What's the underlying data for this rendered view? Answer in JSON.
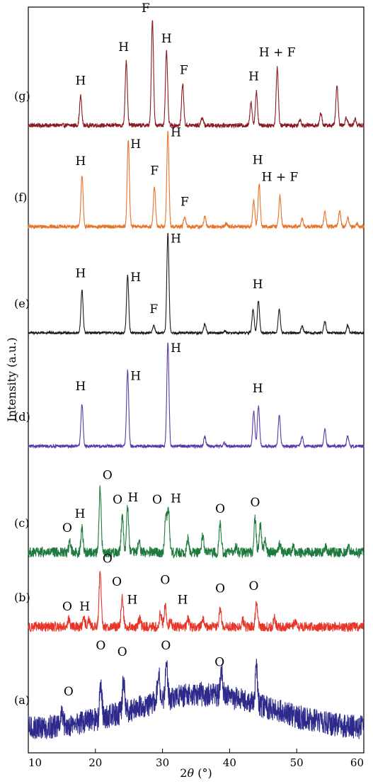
{
  "chart_data": {
    "type": "line",
    "xlabel_prefix": "2",
    "xlabel_theta": "θ",
    "xlabel_suffix": " (°)",
    "ylabel": "Intensity (a.u.)",
    "xlim": [
      10,
      60
    ],
    "x_ticks": [
      10,
      20,
      30,
      40,
      50,
      60
    ],
    "x_tick_labels": [
      "10",
      "20",
      "30",
      "40",
      "50",
      "60"
    ],
    "series": [
      {
        "name": "(g)",
        "color": "#8b1a24",
        "baseline": 1.0,
        "noise": 0.02,
        "peaks": [
          [
            17.8,
            0.28
          ],
          [
            24.6,
            0.62
          ],
          [
            28.5,
            1.0
          ],
          [
            30.6,
            0.7
          ],
          [
            33.0,
            0.4
          ],
          [
            35.9,
            0.08
          ],
          [
            43.2,
            0.22
          ],
          [
            44.0,
            0.32
          ],
          [
            47.1,
            0.55
          ],
          [
            50.5,
            0.06
          ],
          [
            53.6,
            0.12
          ],
          [
            56.0,
            0.38
          ],
          [
            57.4,
            0.08
          ],
          [
            58.7,
            0.06
          ]
        ],
        "annotations": [
          {
            "text": "H",
            "x": 17.8,
            "y": 0.39
          },
          {
            "text": "H",
            "x": 24.2,
            "y": 0.71
          },
          {
            "text": "F",
            "x": 27.5,
            "y": 1.08
          },
          {
            "text": "H",
            "x": 30.6,
            "y": 0.79
          },
          {
            "text": "F",
            "x": 33.2,
            "y": 0.49
          },
          {
            "text": "H",
            "x": 43.6,
            "y": 0.43
          },
          {
            "text": "H + F",
            "x": 47.1,
            "y": 0.66
          }
        ]
      },
      {
        "name": "(f)",
        "color": "#e8742a",
        "baseline": 1.0,
        "noise": 0.02,
        "peaks": [
          [
            18.0,
            0.54
          ],
          [
            24.9,
            0.92
          ],
          [
            28.8,
            0.42
          ],
          [
            30.8,
            1.0
          ],
          [
            33.3,
            0.1
          ],
          [
            36.3,
            0.1
          ],
          [
            39.5,
            0.03
          ],
          [
            43.6,
            0.27
          ],
          [
            44.4,
            0.45
          ],
          [
            47.5,
            0.33
          ],
          [
            50.8,
            0.08
          ],
          [
            54.2,
            0.15
          ],
          [
            56.4,
            0.16
          ],
          [
            57.6,
            0.1
          ],
          [
            59.0,
            0.03
          ]
        ],
        "annotations": [
          {
            "text": "H",
            "x": 17.8,
            "y": 0.65
          },
          {
            "text": "H",
            "x": 26.0,
            "y": 0.83
          },
          {
            "text": "F",
            "x": 28.8,
            "y": 0.55
          },
          {
            "text": "H",
            "x": 32.0,
            "y": 0.95
          },
          {
            "text": "F",
            "x": 33.3,
            "y": 0.22
          },
          {
            "text": "H",
            "x": 44.2,
            "y": 0.66
          },
          {
            "text": "H + F",
            "x": 47.5,
            "y": 0.48
          }
        ]
      },
      {
        "name": "(e)",
        "color": "#1a1a1a",
        "baseline": 1.0,
        "noise": 0.012,
        "peaks": [
          [
            18.0,
            0.43
          ],
          [
            24.8,
            0.58
          ],
          [
            28.7,
            0.07
          ],
          [
            30.8,
            1.0
          ],
          [
            36.3,
            0.09
          ],
          [
            39.3,
            0.02
          ],
          [
            43.5,
            0.24
          ],
          [
            44.3,
            0.33
          ],
          [
            47.4,
            0.24
          ],
          [
            50.8,
            0.07
          ],
          [
            54.2,
            0.12
          ],
          [
            57.6,
            0.08
          ]
        ],
        "annotations": [
          {
            "text": "H",
            "x": 17.8,
            "y": 0.56
          },
          {
            "text": "H",
            "x": 26.0,
            "y": 0.52
          },
          {
            "text": "F",
            "x": 28.7,
            "y": 0.2
          },
          {
            "text": "H",
            "x": 32.0,
            "y": 0.91
          },
          {
            "text": "H",
            "x": 44.2,
            "y": 0.45
          }
        ]
      },
      {
        "name": "(d)",
        "color": "#5b3aa8",
        "baseline": 1.0,
        "noise": 0.015,
        "peaks": [
          [
            18.0,
            0.41
          ],
          [
            24.8,
            0.73
          ],
          [
            30.8,
            1.0
          ],
          [
            36.3,
            0.09
          ],
          [
            39.2,
            0.03
          ],
          [
            43.6,
            0.34
          ],
          [
            44.3,
            0.39
          ],
          [
            47.4,
            0.3
          ],
          [
            50.8,
            0.09
          ],
          [
            54.2,
            0.16
          ],
          [
            57.6,
            0.1
          ]
        ],
        "annotations": [
          {
            "text": "H",
            "x": 17.8,
            "y": 0.54
          },
          {
            "text": "H",
            "x": 26.0,
            "y": 0.64
          },
          {
            "text": "H",
            "x": 32.0,
            "y": 0.91
          },
          {
            "text": "H",
            "x": 44.2,
            "y": 0.52
          }
        ]
      },
      {
        "name": "(c)",
        "color": "#1e7a3c",
        "baseline": 1.0,
        "noise": 0.05,
        "peaks": [
          [
            16.2,
            0.1
          ],
          [
            18.0,
            0.23
          ],
          [
            20.7,
            0.62
          ],
          [
            24.0,
            0.37
          ],
          [
            24.8,
            0.45
          ],
          [
            26.5,
            0.1
          ],
          [
            30.5,
            0.36
          ],
          [
            30.9,
            0.41
          ],
          [
            33.8,
            0.13
          ],
          [
            36.0,
            0.16
          ],
          [
            38.6,
            0.28
          ],
          [
            41.0,
            0.06
          ],
          [
            43.8,
            0.33
          ],
          [
            44.6,
            0.27
          ],
          [
            45.3,
            0.12
          ],
          [
            47.5,
            0.09
          ],
          [
            49.5,
            0.05
          ],
          [
            54.3,
            0.05
          ],
          [
            57.7,
            0.04
          ]
        ],
        "annotations": [
          {
            "text": "O",
            "x": 15.8,
            "y": 0.2
          },
          {
            "text": "H",
            "x": 17.7,
            "y": 0.34
          },
          {
            "text": "O",
            "x": 21.8,
            "y": 0.72
          },
          {
            "text": "O",
            "x": 23.3,
            "y": 0.48
          },
          {
            "text": "H",
            "x": 25.6,
            "y": 0.5
          },
          {
            "text": "O",
            "x": 29.2,
            "y": 0.48
          },
          {
            "text": "H",
            "x": 32.0,
            "y": 0.49
          },
          {
            "text": "O",
            "x": 38.6,
            "y": 0.39
          },
          {
            "text": "O",
            "x": 43.8,
            "y": 0.45
          }
        ]
      },
      {
        "name": "(b)",
        "color": "#e8352a",
        "baseline": 1.0,
        "noise": 0.06,
        "peaks": [
          [
            16.0,
            0.09
          ],
          [
            18.3,
            0.09
          ],
          [
            19.0,
            0.07
          ],
          [
            20.7,
            0.65
          ],
          [
            24.0,
            0.37
          ],
          [
            26.6,
            0.09
          ],
          [
            29.7,
            0.16
          ],
          [
            30.4,
            0.26
          ],
          [
            31.2,
            0.09
          ],
          [
            33.8,
            0.09
          ],
          [
            36.0,
            0.09
          ],
          [
            38.6,
            0.22
          ],
          [
            42.0,
            0.08
          ],
          [
            44.0,
            0.28
          ],
          [
            46.7,
            0.1
          ],
          [
            49.7,
            0.05
          ]
        ],
        "annotations": [
          {
            "text": "O",
            "x": 15.8,
            "y": 0.2
          },
          {
            "text": "H",
            "x": 18.4,
            "y": 0.2
          },
          {
            "text": "O",
            "x": 21.8,
            "y": 0.78
          },
          {
            "text": "O",
            "x": 23.2,
            "y": 0.5
          },
          {
            "text": "H",
            "x": 25.5,
            "y": 0.28
          },
          {
            "text": "O",
            "x": 30.4,
            "y": 0.52
          },
          {
            "text": "H",
            "x": 33.0,
            "y": 0.28
          },
          {
            "text": "O",
            "x": 38.6,
            "y": 0.42
          },
          {
            "text": "O",
            "x": 43.6,
            "y": 0.45
          }
        ]
      },
      {
        "name": "(a)",
        "color": "#2e2a8c",
        "baseline": 1.0,
        "noise": 0.13,
        "hump": {
          "center": 36.0,
          "width": 10.0,
          "height": 0.38
        },
        "peaks": [
          [
            15.0,
            0.12
          ],
          [
            20.8,
            0.42
          ],
          [
            24.2,
            0.34
          ],
          [
            29.4,
            0.34
          ],
          [
            30.6,
            0.38
          ],
          [
            38.8,
            0.28
          ],
          [
            44.0,
            0.42
          ]
        ],
        "annotations": [
          {
            "text": "O",
            "x": 16.0,
            "y": 0.37
          },
          {
            "text": "O",
            "x": 20.8,
            "y": 0.87
          },
          {
            "text": "O",
            "x": 24.0,
            "y": 0.8
          },
          {
            "text": "O",
            "x": 30.5,
            "y": 0.87
          },
          {
            "text": "O",
            "x": 38.5,
            "y": 0.69
          }
        ]
      }
    ]
  }
}
